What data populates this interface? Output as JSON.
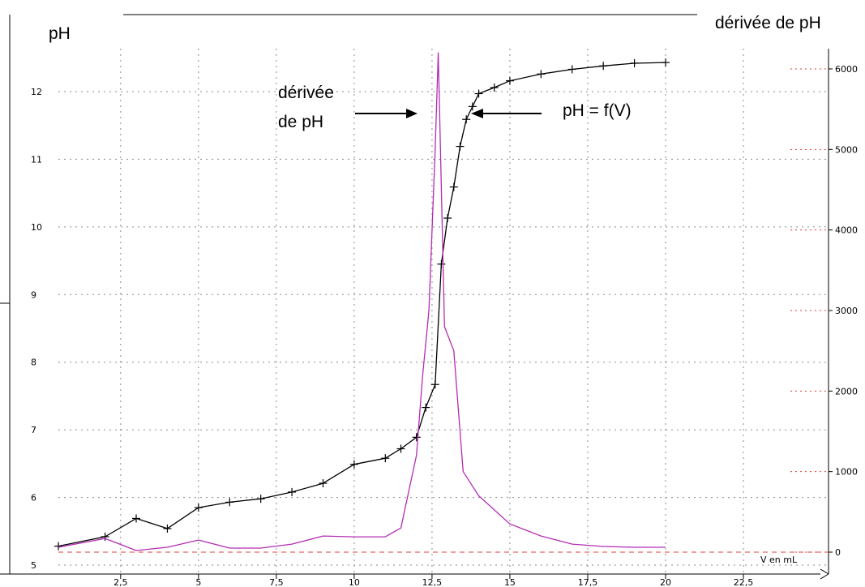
{
  "chart_data": {
    "type": "line",
    "ylabel_left": "pH",
    "ylabel_right": "dérivée de pH",
    "xlabel": "V en mL",
    "x_ticks": [
      "2,5",
      "5",
      "7,5",
      "10",
      "12,5",
      "15",
      "17,5",
      "20",
      "22,5"
    ],
    "x_tick_values": [
      2.5,
      5,
      7.5,
      10,
      12.5,
      15,
      17.5,
      20,
      22.5
    ],
    "y_left_ticks": [
      5,
      6,
      7,
      8,
      9,
      10,
      11,
      12
    ],
    "y_right_ticks": [
      0,
      1000,
      2000,
      3000,
      4000,
      5000,
      6000
    ],
    "xlim": [
      0.5,
      24
    ],
    "ylim_left": [
      4.9,
      12.6
    ],
    "ylim_right": [
      -250,
      6250
    ],
    "grid": true,
    "series": [
      {
        "name": "pH = f(V)",
        "axis": "left",
        "color": "#000000",
        "markers": "plus",
        "x": [
          0.5,
          2,
          3,
          4,
          5,
          6,
          7,
          8,
          9,
          10,
          11,
          11.5,
          12,
          12.3,
          12.6,
          12.8,
          13,
          13.2,
          13.4,
          13.6,
          13.8,
          14,
          14.5,
          15,
          16,
          17,
          18,
          19,
          20
        ],
        "y": [
          5.28,
          5.42,
          5.69,
          5.54,
          5.85,
          5.93,
          5.98,
          6.08,
          6.21,
          6.49,
          6.58,
          6.72,
          6.89,
          7.33,
          7.67,
          9.45,
          10.13,
          10.59,
          11.19,
          11.59,
          11.78,
          11.97,
          12.06,
          12.16,
          12.26,
          12.33,
          12.38,
          12.42,
          12.43
        ]
      },
      {
        "name": "dérivée de pH",
        "axis": "right",
        "color": "#b32db3",
        "markers": "none",
        "x": [
          0.5,
          2,
          3,
          4,
          5,
          6,
          7,
          8,
          9,
          10,
          11,
          11.5,
          12,
          12.2,
          12.4,
          12.6,
          12.7,
          12.9,
          13.2,
          13.5,
          14,
          15,
          16,
          17,
          18,
          19,
          20
        ],
        "y": [
          60,
          170,
          20,
          60,
          150,
          50,
          50,
          100,
          200,
          190,
          190,
          300,
          1200,
          2200,
          3000,
          5000,
          6200,
          2800,
          2500,
          1000,
          700,
          350,
          200,
          100,
          70,
          60,
          60
        ]
      }
    ],
    "annotations": [
      {
        "text_line1": "dérivée",
        "text_line2": "de pH",
        "points_to": "dérivée de pH"
      },
      {
        "text": "pH = f(V)",
        "points_to": "pH = f(V)"
      }
    ],
    "baseline_right_value": 0,
    "baseline_color": "#e0403a"
  }
}
